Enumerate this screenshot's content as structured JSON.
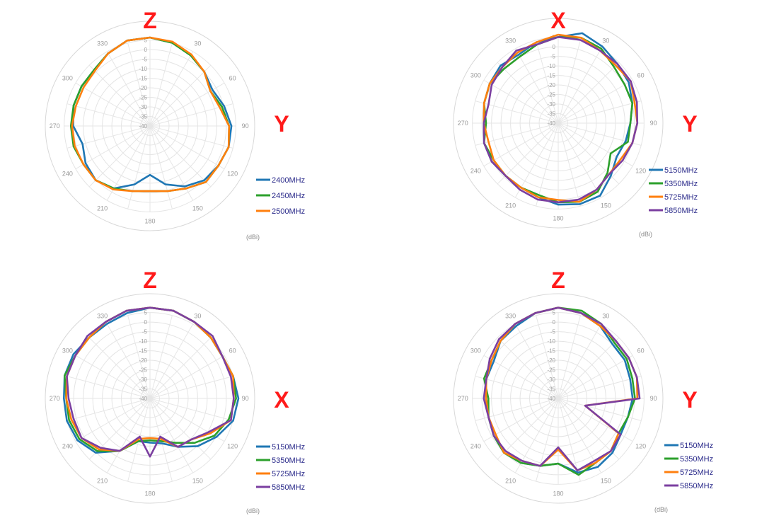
{
  "chart_data": [
    {
      "type": "polar-line",
      "top_label": "Z",
      "right_label": "Y",
      "unit_label": "(dBi)",
      "angle_ticks": [
        "0",
        "30",
        "60",
        "90",
        "120",
        "150",
        "180",
        "210",
        "240",
        "270",
        "300",
        "330"
      ],
      "r_ticks": [
        "5",
        "0",
        "-5",
        "-10",
        "-15",
        "-20",
        "-25",
        "-30",
        "-35",
        "-40"
      ],
      "r_range": [
        -40,
        5
      ],
      "angles": [
        0,
        15,
        30,
        45,
        60,
        75,
        90,
        105,
        120,
        135,
        150,
        165,
        180,
        195,
        210,
        225,
        240,
        255,
        270,
        285,
        300,
        315,
        330,
        345
      ],
      "series": [
        {
          "name": "2400MHz",
          "color": "#1f77b4",
          "values": [
            -2,
            -3,
            -5,
            -7,
            -9,
            -7,
            -5,
            -5,
            -6,
            -7,
            -10,
            -14,
            -19,
            -14,
            -9,
            -7,
            -8,
            -10,
            -7,
            -6,
            -6,
            -6,
            -4,
            -2
          ]
        },
        {
          "name": "2450MHz",
          "color": "#2ca02c",
          "values": [
            -2,
            -3,
            -5,
            -7,
            -10,
            -8,
            -6,
            -5,
            -6,
            -6,
            -9,
            -11,
            -12,
            -11,
            -9,
            -7,
            -7,
            -6,
            -6,
            -6,
            -6,
            -6,
            -4,
            -2
          ]
        },
        {
          "name": "2500MHz",
          "color": "#ff7f0e",
          "values": [
            -2,
            -2.5,
            -4.5,
            -7,
            -10,
            -9,
            -6,
            -5,
            -6,
            -6,
            -9,
            -11,
            -12,
            -11,
            -8.5,
            -7,
            -7,
            -6.5,
            -6.5,
            -7,
            -7,
            -6.5,
            -4,
            -2
          ]
        }
      ]
    },
    {
      "type": "polar-line",
      "top_label": "X",
      "right_label": "Y",
      "unit_label": "(dBi)",
      "angle_ticks": [
        "0",
        "30",
        "60",
        "90",
        "120",
        "150",
        "180",
        "210",
        "240",
        "270",
        "300",
        "330"
      ],
      "r_ticks": [
        "5",
        "0",
        "-5",
        "-10",
        "-15",
        "-20",
        "-25",
        "-30",
        "-35",
        "-40"
      ],
      "r_range": [
        -40,
        5
      ],
      "angles": [
        0,
        15,
        30,
        45,
        60,
        75,
        90,
        105,
        120,
        135,
        150,
        165,
        180,
        195,
        210,
        225,
        240,
        255,
        270,
        285,
        300,
        315,
        330,
        345
      ],
      "series": [
        {
          "name": "5150MHz",
          "color": "#1f77b4",
          "values": [
            -3,
            0,
            -2,
            -4,
            -5,
            -7,
            -9,
            -10,
            -11,
            -8,
            -4,
            -4,
            -5,
            -7,
            -8,
            -8,
            -7,
            -7,
            -8,
            -7,
            -6,
            -5,
            -6,
            -4
          ]
        },
        {
          "name": "5350MHz",
          "color": "#2ca02c",
          "values": [
            -3,
            -2,
            -3,
            -6,
            -7,
            -7,
            -9,
            -9,
            -14,
            -10,
            -6,
            -5,
            -6,
            -8,
            -8,
            -8,
            -8,
            -7,
            -9,
            -7,
            -6,
            -7,
            -7,
            -5
          ]
        },
        {
          "name": "5725MHz",
          "color": "#ff7f0e",
          "values": [
            -2,
            -2,
            -4,
            -5,
            -4,
            -6,
            -6,
            -7,
            -9,
            -9,
            -7,
            -5,
            -7,
            -7,
            -8,
            -8,
            -8,
            -9,
            -8,
            -7,
            -6,
            -6,
            -5,
            -4
          ]
        },
        {
          "name": "5850MHz",
          "color": "#7b3fa0",
          "values": [
            -3,
            -3,
            -4,
            -4,
            -4,
            -5,
            -6,
            -7,
            -8,
            -9,
            -7,
            -6,
            -6,
            -6,
            -7,
            -8,
            -7,
            -7,
            -8,
            -9,
            -7,
            -6,
            -4,
            -5
          ]
        }
      ]
    },
    {
      "type": "polar-line",
      "top_label": "Z",
      "right_label": "X",
      "unit_label": "(dBi)",
      "angle_ticks": [
        "0",
        "30",
        "60",
        "90",
        "120",
        "150",
        "180",
        "210",
        "240",
        "270",
        "300",
        "330"
      ],
      "r_ticks": [
        "5",
        "0",
        "-5",
        "-10",
        "-15",
        "-20",
        "-25",
        "-30",
        "-35",
        "-40"
      ],
      "r_range": [
        -40,
        5
      ],
      "angles": [
        0,
        15,
        30,
        45,
        60,
        75,
        90,
        105,
        120,
        135,
        150,
        165,
        180,
        195,
        210,
        225,
        240,
        255,
        270,
        285,
        300,
        315,
        330,
        345
      ],
      "series": [
        {
          "name": "5150MHz",
          "color": "#1f77b4",
          "values": [
            -1,
            -1,
            -2,
            -3,
            -4,
            -3,
            -2,
            -3,
            -7,
            -11,
            -16,
            -20,
            -21,
            -21,
            -14,
            -7,
            -4,
            -3,
            -3,
            -2,
            -2,
            -3,
            -3,
            -2
          ]
        },
        {
          "name": "5350MHz",
          "color": "#2ca02c",
          "values": [
            -1,
            -1,
            -2,
            -3,
            -4,
            -3,
            -3,
            -5,
            -8,
            -13,
            -18,
            -21,
            -22,
            -21,
            -14,
            -8,
            -5,
            -4,
            -4,
            -2,
            -3,
            -3,
            -2,
            -1
          ]
        },
        {
          "name": "5725MHz",
          "color": "#ff7f0e",
          "values": [
            -1,
            -1,
            -2,
            -3,
            -4,
            -3,
            -4,
            -4,
            -10,
            -15,
            -16,
            -22,
            -23,
            -22,
            -14,
            -9,
            -6,
            -5,
            -4,
            -3,
            -3,
            -3,
            -2,
            -1
          ]
        },
        {
          "name": "5850MHz",
          "color": "#7b3fa0",
          "values": [
            -1,
            -1,
            -2,
            -2,
            -4,
            -4,
            -4,
            -4,
            -11,
            -15,
            -16,
            -23,
            -15,
            -23,
            -14,
            -10,
            -6,
            -6,
            -5,
            -3,
            -3,
            -2,
            -2,
            -1
          ]
        }
      ]
    },
    {
      "type": "polar-line",
      "top_label": "Z",
      "right_label": "Y",
      "unit_label": "(dBi)",
      "angle_ticks": [
        "0",
        "30",
        "60",
        "90",
        "120",
        "150",
        "180",
        "210",
        "240",
        "270",
        "300",
        "330"
      ],
      "r_ticks": [
        "5",
        "0",
        "-5",
        "-10",
        "-15",
        "-20",
        "-25",
        "-30",
        "-35",
        "-40"
      ],
      "r_range": [
        -40,
        5
      ],
      "angles": [
        0,
        15,
        30,
        45,
        60,
        75,
        90,
        105,
        120,
        135,
        150,
        165,
        180,
        195,
        210,
        225,
        240,
        255,
        270,
        285,
        300,
        315,
        330,
        345
      ],
      "series": [
        {
          "name": "5150MHz",
          "color": "#1f77b4",
          "values": [
            -1,
            -2,
            -4,
            -7,
            -7,
            -8,
            -8,
            -9,
            -9,
            -7,
            -6,
            -7,
            -12,
            -10,
            -8,
            -7,
            -8,
            -9,
            -9,
            -8,
            -8,
            -5,
            -4,
            -2
          ]
        },
        {
          "name": "5350MHz",
          "color": "#2ca02c",
          "values": [
            -1,
            -1,
            -3,
            -6,
            -6,
            -7,
            -7,
            -9,
            -10,
            -8,
            -8,
            -6,
            -12,
            -10,
            -8,
            -7,
            -8,
            -9,
            -10,
            -7,
            -7,
            -5,
            -3,
            -2
          ]
        },
        {
          "name": "5725MHz",
          "color": "#ff7f0e",
          "values": [
            -1,
            -2,
            -4,
            -5,
            -5,
            -5,
            -6,
            -28,
            -10,
            -8,
            -8,
            -8,
            -18,
            -10,
            -9,
            -7,
            -9,
            -9,
            -9,
            -8,
            -7,
            -5,
            -3,
            -2
          ]
        },
        {
          "name": "5850MHz",
          "color": "#7b3fa0",
          "values": [
            -1,
            -2,
            -3,
            -5,
            -5,
            -5,
            -5,
            -28,
            -9,
            -8,
            -9,
            -8,
            -19,
            -10,
            -9,
            -8,
            -8,
            -9,
            -8,
            -8,
            -6,
            -4,
            -3,
            -2
          ]
        }
      ]
    }
  ]
}
